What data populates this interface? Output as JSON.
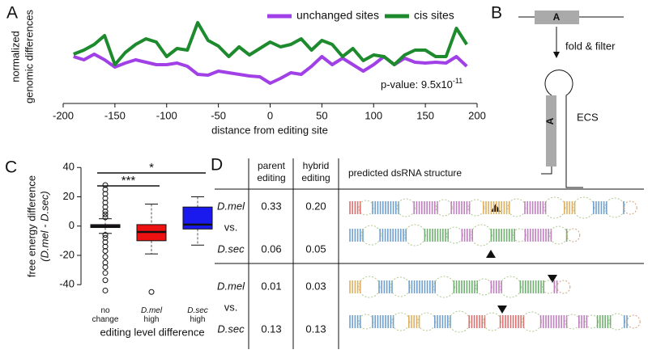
{
  "panel_labels": [
    "A",
    "B",
    "C",
    "D"
  ],
  "chart_data": [
    {
      "type": "line",
      "xlabel": "distance from editing site",
      "ylabel": [
        "normalized",
        "genomic differences"
      ],
      "x": [
        -190,
        -180,
        -170,
        -160,
        -150,
        -140,
        -130,
        -120,
        -110,
        -100,
        -90,
        -80,
        -70,
        -60,
        -50,
        -40,
        -30,
        -20,
        -10,
        0,
        10,
        20,
        30,
        40,
        50,
        60,
        70,
        80,
        90,
        100,
        110,
        120,
        130,
        140,
        150,
        160,
        170,
        180,
        190
      ],
      "xlim": [
        -200,
        200
      ],
      "xticks": [
        -200,
        -150,
        -100,
        -50,
        0,
        50,
        100,
        150,
        200
      ],
      "ylim": [
        0,
        1
      ],
      "series": [
        {
          "name": "unchanged sites",
          "color": "#a040e6",
          "values": [
            0.5,
            0.46,
            0.53,
            0.46,
            0.37,
            0.42,
            0.46,
            0.43,
            0.4,
            0.4,
            0.42,
            0.38,
            0.28,
            0.27,
            0.32,
            0.3,
            0.28,
            0.26,
            0.25,
            0.17,
            0.23,
            0.3,
            0.28,
            0.38,
            0.5,
            0.4,
            0.48,
            0.4,
            0.32,
            0.4,
            0.5,
            0.4,
            0.48,
            0.43,
            0.42,
            0.43,
            0.42,
            0.5,
            0.38
          ]
        },
        {
          "name": "cis sites",
          "color": "#1e8a2e",
          "values": [
            0.53,
            0.58,
            0.65,
            0.76,
            0.4,
            0.55,
            0.65,
            0.72,
            0.68,
            0.5,
            0.6,
            0.58,
            0.92,
            0.7,
            0.63,
            0.5,
            0.62,
            0.52,
            0.6,
            0.68,
            0.62,
            0.65,
            0.72,
            0.58,
            0.7,
            0.65,
            0.5,
            0.6,
            0.45,
            0.52,
            0.5,
            0.4,
            0.52,
            0.58,
            0.58,
            0.5,
            0.5,
            0.85,
            0.65
          ]
        }
      ],
      "legend": "top-right",
      "annotation": {
        "text": "p-value: 9.5x10",
        "exponent": "-11"
      }
    },
    {
      "type": "box",
      "xlabel": "editing level difference",
      "ylabel": [
        "free energy difference",
        "(D.mel - D.sec)"
      ],
      "categories": [
        "no change",
        "D.mel high",
        "D.sec high"
      ],
      "ylim": [
        -49,
        44
      ],
      "yticks": [
        -40,
        -20,
        0,
        20,
        40
      ],
      "boxes": [
        {
          "color": "#9b4fd6",
          "whisker_low": -5,
          "q1": -1,
          "median": 0,
          "q3": 1,
          "whisker_high": 5,
          "outliers": [
            28,
            25,
            22,
            19,
            16,
            13,
            10,
            8,
            6,
            -6,
            -8,
            -11,
            -14,
            -17,
            -21,
            -25,
            -28,
            -32,
            -37,
            -44
          ]
        },
        {
          "color": "#ee1111",
          "whisker_low": -19,
          "q1": -10,
          "median": -4,
          "q3": 1,
          "whisker_high": 15,
          "outliers": [
            -45
          ]
        },
        {
          "color": "#1a1aee",
          "whisker_low": -13,
          "q1": -2,
          "median": 1,
          "q3": 13,
          "whisker_high": 20,
          "outliers": []
        }
      ],
      "significance": [
        "***",
        "*"
      ]
    }
  ],
  "diagram": {
    "box_text": "A",
    "step": "fold & filter",
    "hairpin_text": "A",
    "region": "ECS"
  },
  "table": {
    "header": [
      [
        "parent",
        "editing"
      ],
      [
        "hybrid",
        "editing"
      ],
      [
        "predicted dsRNA structure"
      ]
    ],
    "groups": [
      [
        [
          "D.mel",
          "0.33",
          "0.20"
        ],
        [
          "vs."
        ],
        [
          "D.sec",
          "0.06",
          "0.05"
        ]
      ],
      [
        [
          "D.mel",
          "0.01",
          "0.03"
        ],
        [
          "vs."
        ],
        [
          "D.sec",
          "0.13",
          "0.13"
        ]
      ]
    ]
  }
}
